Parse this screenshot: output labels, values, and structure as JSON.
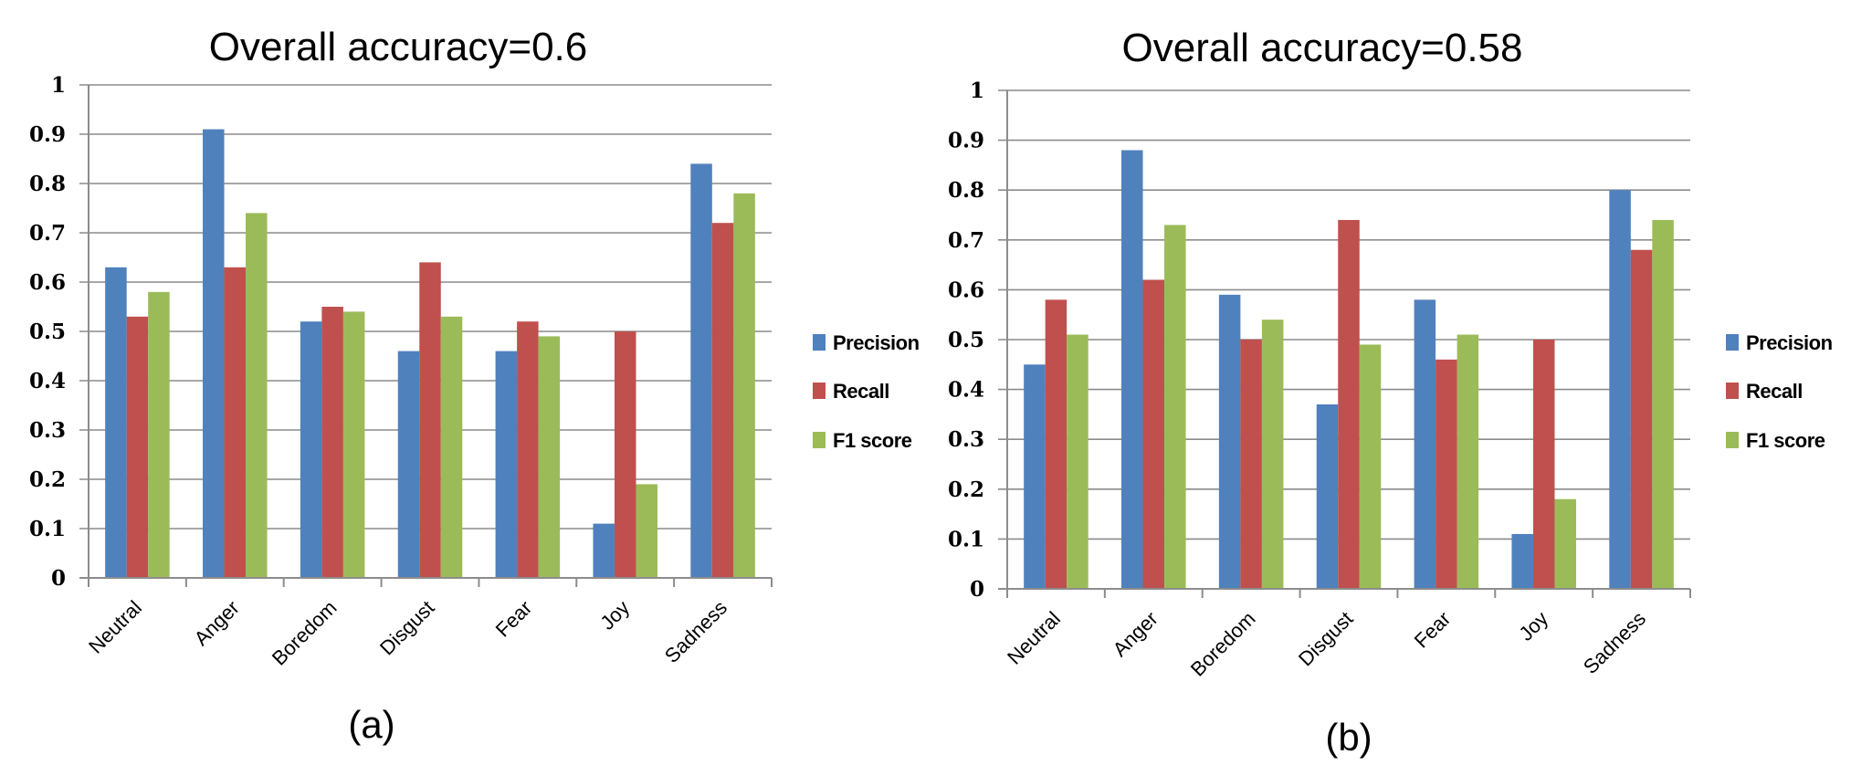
{
  "chart_data": [
    {
      "type": "bar",
      "title": "Overall accuracy=0.6",
      "caption": "(a)",
      "xlabel": "",
      "ylabel": "",
      "ylim": [
        0,
        1
      ],
      "yticks": [
        "0",
        "0.1",
        "0.2",
        "0.3",
        "0.4",
        "0.5",
        "0.6",
        "0.7",
        "0.8",
        "0.9",
        "1"
      ],
      "grid": true,
      "legend_position": "right",
      "categories": [
        "Neutral",
        "Anger",
        "Boredom",
        "Disgust",
        "Fear",
        "Joy",
        "Sadness"
      ],
      "series": [
        {
          "name": "Precision",
          "color": "#4F81BD",
          "values": [
            0.63,
            0.91,
            0.52,
            0.46,
            0.46,
            0.11,
            0.84
          ]
        },
        {
          "name": "Recall",
          "color": "#C0504D",
          "values": [
            0.53,
            0.63,
            0.55,
            0.64,
            0.52,
            0.5,
            0.72
          ]
        },
        {
          "name": "F1 score",
          "color": "#9BBB59",
          "values": [
            0.58,
            0.74,
            0.54,
            0.53,
            0.49,
            0.19,
            0.78
          ]
        }
      ]
    },
    {
      "type": "bar",
      "title": "Overall accuracy=0.58",
      "caption": "(b)",
      "xlabel": "",
      "ylabel": "",
      "ylim": [
        0,
        1
      ],
      "yticks": [
        "0",
        "0.1",
        "0.2",
        "0.3",
        "0.4",
        "0.5",
        "0.6",
        "0.7",
        "0.8",
        "0.9",
        "1"
      ],
      "grid": true,
      "legend_position": "right",
      "categories": [
        "Neutral",
        "Anger",
        "Boredom",
        "Disgust",
        "Fear",
        "Joy",
        "Sadness"
      ],
      "series": [
        {
          "name": "Precision",
          "color": "#4F81BD",
          "values": [
            0.45,
            0.88,
            0.59,
            0.37,
            0.58,
            0.11,
            0.8
          ]
        },
        {
          "name": "Recall",
          "color": "#C0504D",
          "values": [
            0.58,
            0.62,
            0.5,
            0.74,
            0.46,
            0.5,
            0.68
          ]
        },
        {
          "name": "F1 score",
          "color": "#9BBB59",
          "values": [
            0.51,
            0.73,
            0.54,
            0.49,
            0.51,
            0.18,
            0.74
          ]
        }
      ]
    }
  ]
}
